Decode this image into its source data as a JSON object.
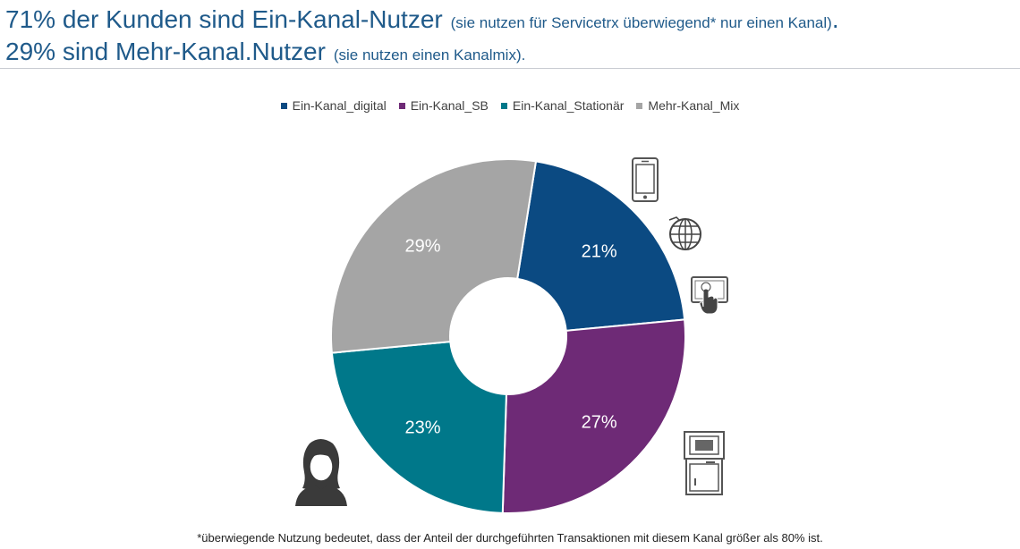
{
  "header": {
    "line1_main": "71% der Kunden sind Ein-Kanal-Nutzer",
    "line1_note": "(sie nutzen für Servicetrx überwiegend* nur einen Kanal)",
    "line1_end": ".",
    "line2_main": "29% sind Mehr-Kanal.Nutzer",
    "line2_note": "(sie nutzen einen Kanalmix)."
  },
  "chart_data": {
    "type": "pie",
    "donut": true,
    "legend_position": "top",
    "slices": [
      {
        "name": "Ein-Kanal_digital",
        "value": 21,
        "label": "21%",
        "color": "#0b4a82"
      },
      {
        "name": "Ein-Kanal_SB",
        "value": 27,
        "label": "27%",
        "color": "#6e2a76"
      },
      {
        "name": "Ein-Kanal_Stationär",
        "value": 23,
        "label": "23%",
        "color": "#00788a"
      },
      {
        "name": "Mehr-Kanal_Mix",
        "value": 29,
        "label": "29%",
        "color": "#a5a5a5"
      }
    ]
  },
  "icons": {
    "digital": [
      "smartphone-icon",
      "globe-icon",
      "touchscreen-icon"
    ],
    "sb": "atm-terminal-icon",
    "stationaer": "woman-avatar-icon"
  },
  "footnote": "*überwiegende Nutzung bedeutet, dass der Anteil der durchgeführten Transaktionen mit diesem Kanal größer als 80% ist."
}
